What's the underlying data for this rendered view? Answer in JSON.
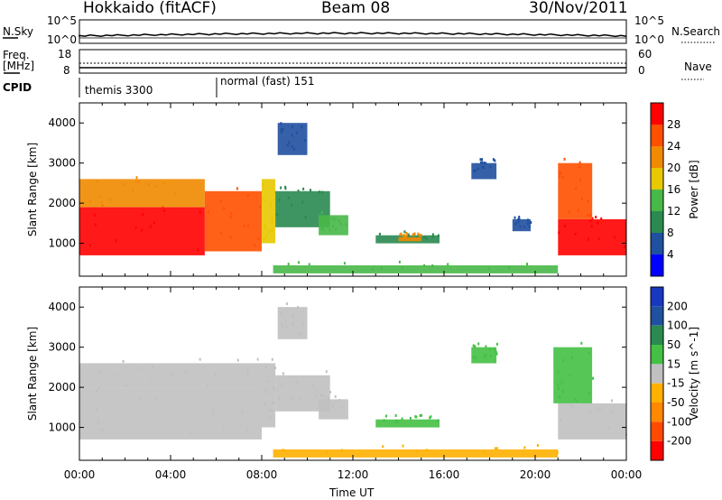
{
  "header": {
    "left": "Hokkaido (fitACF)",
    "center": "Beam 08",
    "right": "30/Nov/2011"
  },
  "strips": {
    "nsky_label": "N.Sky",
    "nsearch_label": "N.Search",
    "nsky_ticks": [
      "10^5",
      "10^0"
    ],
    "nsearch_ticks": [
      "10^5",
      "10^0"
    ],
    "freq_label": "Freq.",
    "freq_unit": "[MHz]",
    "freq_ticks": [
      "18",
      "8"
    ],
    "nave_label": "Nave",
    "nave_ticks": [
      "60",
      "0"
    ],
    "cpid_label": "CPID",
    "cpid_segments": [
      {
        "label": "themis 3300",
        "start_hour": 0
      },
      {
        "label": "normal (fast) 151",
        "start_hour": 6.0
      }
    ]
  },
  "colors": {
    "power": [
      "#0000ff",
      "#2050a0",
      "#2a8a50",
      "#48b848",
      "#e8c800",
      "#f08a00",
      "#ff5000",
      "#ff0000"
    ],
    "velocity": [
      "#ff0000",
      "#ff4a00",
      "#ff8800",
      "#ffb000",
      "#c0c0c0",
      "#44c044",
      "#2a8a50",
      "#2050a0",
      "#1838c0"
    ]
  },
  "chart_data": [
    {
      "type": "heatmap",
      "name": "power",
      "ylabel": "Slant Range [km]",
      "xlabel": "",
      "x_ticks": [
        "00:00",
        "04:00",
        "08:00",
        "12:00",
        "16:00",
        "20:00",
        "00:00"
      ],
      "xlim": [
        0,
        24
      ],
      "y_ticks": [
        1000,
        2000,
        3000,
        4000
      ],
      "ylim": [
        180,
        4500
      ],
      "colorbar": {
        "label": "Power [dB]",
        "ticks": [
          4,
          8,
          12,
          16,
          20,
          24,
          28
        ],
        "range": [
          0,
          32
        ]
      },
      "regions": [
        {
          "t0": 0.0,
          "t1": 5.5,
          "r0": 700,
          "r1": 1900,
          "value": 28
        },
        {
          "t0": 0.0,
          "t1": 5.5,
          "r0": 1900,
          "r1": 2600,
          "value": 22
        },
        {
          "t0": 5.5,
          "t1": 8.0,
          "r0": 800,
          "r1": 2300,
          "value": 26
        },
        {
          "t0": 8.0,
          "t1": 8.6,
          "r0": 1000,
          "r1": 2600,
          "value": 18
        },
        {
          "t0": 8.6,
          "t1": 11.0,
          "r0": 1400,
          "r1": 2300,
          "value": 10
        },
        {
          "t0": 10.5,
          "t1": 11.8,
          "r0": 1200,
          "r1": 1700,
          "value": 12
        },
        {
          "t0": 13.0,
          "t1": 15.8,
          "r0": 1000,
          "r1": 1200,
          "value": 8
        },
        {
          "t0": 14.0,
          "t1": 15.0,
          "r0": 1050,
          "r1": 1150,
          "value": 20
        },
        {
          "t0": 17.2,
          "t1": 18.3,
          "r0": 2600,
          "r1": 3000,
          "value": 6
        },
        {
          "t0": 19.0,
          "t1": 19.8,
          "r0": 1300,
          "r1": 1600,
          "value": 6
        },
        {
          "t0": 8.5,
          "t1": 21.0,
          "r0": 250,
          "r1": 450,
          "value": 14
        },
        {
          "t0": 21.0,
          "t1": 24.0,
          "r0": 700,
          "r1": 1600,
          "value": 28
        },
        {
          "t0": 21.0,
          "t1": 22.5,
          "r0": 1600,
          "r1": 3000,
          "value": 24
        },
        {
          "t0": 8.7,
          "t1": 10.0,
          "r0": 3200,
          "r1": 4000,
          "value": 6
        }
      ]
    },
    {
      "type": "heatmap",
      "name": "velocity",
      "ylabel": "Slant Range [km]",
      "xlabel": "Time UT",
      "x_ticks": [
        "00:00",
        "04:00",
        "08:00",
        "12:00",
        "16:00",
        "20:00",
        "00:00"
      ],
      "xlim": [
        0,
        24
      ],
      "y_ticks": [
        1000,
        2000,
        3000,
        4000
      ],
      "ylim": [
        180,
        4500
      ],
      "colorbar": {
        "label": "Velocity [m s^-1]",
        "ticks": [
          -200,
          -100,
          -50,
          -15,
          15,
          50,
          100,
          200
        ],
        "range": [
          -250,
          250
        ]
      },
      "regions": [
        {
          "t0": 0.0,
          "t1": 8.0,
          "r0": 700,
          "r1": 2000,
          "value": 0
        },
        {
          "t0": 0.0,
          "t1": 8.0,
          "r0": 2000,
          "r1": 2600,
          "value": 0
        },
        {
          "t0": 8.0,
          "t1": 8.6,
          "r0": 1000,
          "r1": 2600,
          "value": 0
        },
        {
          "t0": 8.6,
          "t1": 11.0,
          "r0": 1400,
          "r1": 2300,
          "value": 0
        },
        {
          "t0": 10.5,
          "t1": 11.8,
          "r0": 1200,
          "r1": 1700,
          "value": 0
        },
        {
          "t0": 13.0,
          "t1": 15.8,
          "r0": 1000,
          "r1": 1200,
          "value": 30
        },
        {
          "t0": 17.2,
          "t1": 18.3,
          "r0": 2600,
          "r1": 3000,
          "value": 30
        },
        {
          "t0": 8.5,
          "t1": 21.0,
          "r0": 250,
          "r1": 450,
          "value": -35
        },
        {
          "t0": 21.0,
          "t1": 24.0,
          "r0": 700,
          "r1": 1600,
          "value": 0
        },
        {
          "t0": 20.8,
          "t1": 22.5,
          "r0": 1600,
          "r1": 3000,
          "value": 30
        },
        {
          "t0": 8.7,
          "t1": 10.0,
          "r0": 3200,
          "r1": 4000,
          "value": 0
        }
      ]
    }
  ]
}
